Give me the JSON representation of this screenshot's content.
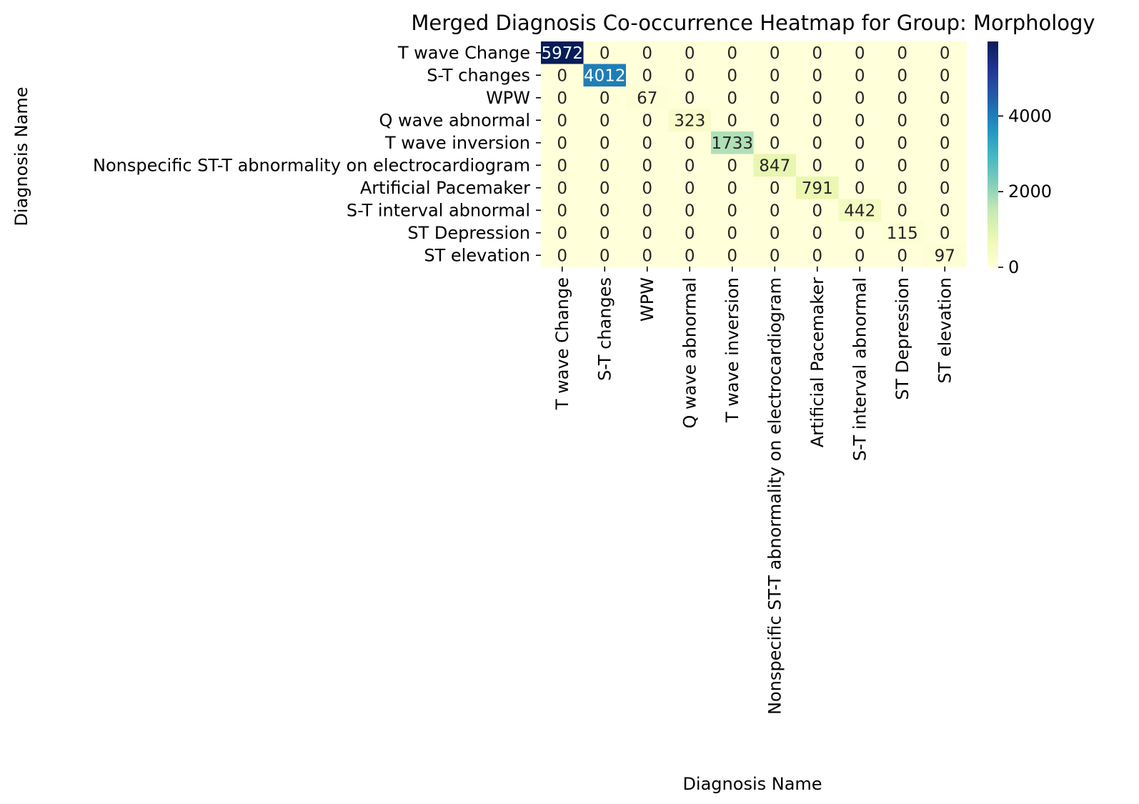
{
  "chart_data": {
    "type": "heatmap",
    "title": "Merged Diagnosis Co-occurrence Heatmap for Group: Morphology",
    "xlabel": "Diagnosis Name",
    "ylabel": "Diagnosis Name",
    "categories": [
      "T wave Change",
      "S-T changes",
      "WPW",
      "Q wave abnormal",
      "T wave inversion",
      "Nonspecific ST-T abnormality on electrocardiogram",
      "Artificial Pacemaker",
      "S-T interval abnormal",
      "ST Depression",
      "ST elevation"
    ],
    "values": [
      [
        5972,
        0,
        0,
        0,
        0,
        0,
        0,
        0,
        0,
        0
      ],
      [
        0,
        4012,
        0,
        0,
        0,
        0,
        0,
        0,
        0,
        0
      ],
      [
        0,
        0,
        67,
        0,
        0,
        0,
        0,
        0,
        0,
        0
      ],
      [
        0,
        0,
        0,
        323,
        0,
        0,
        0,
        0,
        0,
        0
      ],
      [
        0,
        0,
        0,
        0,
        1733,
        0,
        0,
        0,
        0,
        0
      ],
      [
        0,
        0,
        0,
        0,
        0,
        847,
        0,
        0,
        0,
        0
      ],
      [
        0,
        0,
        0,
        0,
        0,
        0,
        791,
        0,
        0,
        0
      ],
      [
        0,
        0,
        0,
        0,
        0,
        0,
        0,
        442,
        0,
        0
      ],
      [
        0,
        0,
        0,
        0,
        0,
        0,
        0,
        0,
        115,
        0
      ],
      [
        0,
        0,
        0,
        0,
        0,
        0,
        0,
        0,
        0,
        97
      ]
    ],
    "colormap": "YlGnBu",
    "colorbar": {
      "range": [
        0,
        5972
      ],
      "ticks": [
        0,
        2000,
        4000
      ]
    },
    "annotations": true,
    "grid": false
  }
}
